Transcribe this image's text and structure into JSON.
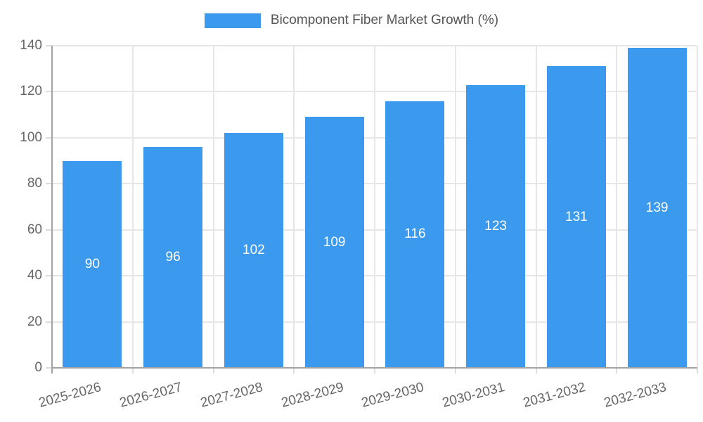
{
  "legend": {
    "label": "Bicomponent Fiber Market Growth (%)"
  },
  "chart_data": {
    "type": "bar",
    "title": "Bicomponent Fiber Market Growth (%)",
    "categories": [
      "2025-2026",
      "2026-2027",
      "2027-2028",
      "2028-2029",
      "2029-2030",
      "2030-2031",
      "2031-2032",
      "2032-2033"
    ],
    "values": [
      90,
      96,
      102,
      109,
      116,
      123,
      131,
      139
    ],
    "xlabel": "",
    "ylabel": "",
    "ylim": [
      0,
      140
    ],
    "ytick_step": 20,
    "yticks": [
      0,
      20,
      40,
      60,
      80,
      100,
      120,
      140
    ],
    "grid": true,
    "legend_position": "top",
    "value_labels": "inside-center"
  },
  "colors": {
    "bar": "#3B9AEE",
    "grid": "#E6E6E6",
    "axis": "#A3A3A3",
    "tick": "#DDDDDD",
    "axis_text": "#666666",
    "legend_text": "#555555",
    "value_label_text": "#FFFFFF",
    "background": "#FFFFFF"
  }
}
